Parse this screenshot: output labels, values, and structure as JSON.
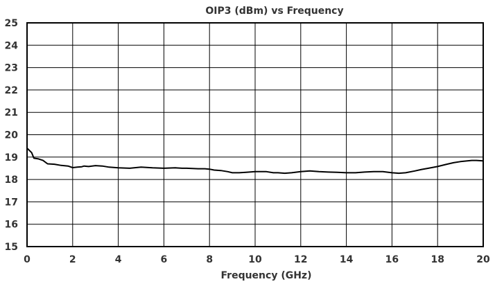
{
  "chart_data": {
    "type": "line",
    "title": "OIP3 (dBm) vs Frequency",
    "xlabel": "Frequency (GHz)",
    "ylabel": "",
    "xlim": [
      0,
      20
    ],
    "ylim": [
      15,
      25
    ],
    "x_ticks": [
      0,
      2,
      4,
      6,
      8,
      10,
      12,
      14,
      16,
      18,
      20
    ],
    "y_ticks": [
      15,
      16,
      17,
      18,
      19,
      20,
      21,
      22,
      23,
      24,
      25
    ],
    "grid": true,
    "legend": "none",
    "series": [
      {
        "color": "#000000",
        "x": [
          0,
          0.2,
          0.3,
          0.5,
          0.7,
          0.9,
          1.2,
          1.5,
          1.8,
          2.0,
          2.2,
          2.4,
          2.5,
          2.7,
          3.0,
          3.3,
          3.6,
          4.0,
          4.5,
          5.0,
          5.5,
          6.0,
          6.5,
          6.8,
          7.0,
          7.5,
          7.8,
          8.0,
          8.2,
          8.5,
          8.8,
          9.0,
          9.3,
          9.6,
          10.0,
          10.5,
          10.8,
          11.0,
          11.3,
          11.6,
          12.0,
          12.4,
          12.8,
          13.2,
          13.6,
          14.0,
          14.4,
          14.8,
          15.2,
          15.6,
          16.0,
          16.3,
          16.6,
          17.0,
          17.3,
          17.6,
          18.0,
          18.4,
          18.7,
          19.0,
          19.3,
          19.5,
          19.7,
          20.0
        ],
        "y": [
          19.4,
          19.2,
          18.95,
          18.92,
          18.85,
          18.7,
          18.68,
          18.63,
          18.6,
          18.53,
          18.55,
          18.57,
          18.6,
          18.58,
          18.62,
          18.6,
          18.55,
          18.52,
          18.5,
          18.55,
          18.52,
          18.5,
          18.52,
          18.5,
          18.5,
          18.48,
          18.48,
          18.46,
          18.42,
          18.4,
          18.35,
          18.3,
          18.3,
          18.32,
          18.35,
          18.35,
          18.3,
          18.3,
          18.28,
          18.3,
          18.35,
          18.38,
          18.35,
          18.33,
          18.32,
          18.3,
          18.3,
          18.33,
          18.35,
          18.35,
          18.3,
          18.28,
          18.3,
          18.38,
          18.45,
          18.5,
          18.58,
          18.68,
          18.75,
          18.8,
          18.83,
          18.85,
          18.85,
          18.83
        ]
      }
    ]
  }
}
